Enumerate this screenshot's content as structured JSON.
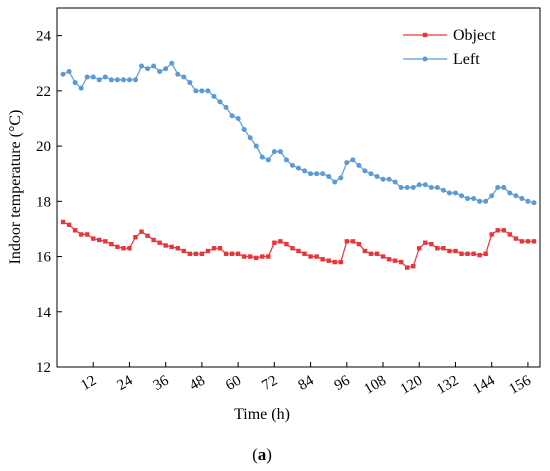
{
  "chart_data": {
    "type": "line",
    "title": "",
    "xlabel": "Time (h)",
    "ylabel": "Indoor temperature (°C)",
    "xlim": [
      0,
      160
    ],
    "ylim": [
      12,
      25
    ],
    "xticks": [
      12,
      24,
      36,
      48,
      60,
      72,
      84,
      96,
      108,
      120,
      132,
      144,
      156
    ],
    "yticks": [
      12,
      14,
      16,
      18,
      20,
      22,
      24
    ],
    "grid": false,
    "legend_position": "top-right",
    "series": [
      {
        "name": "Object",
        "color": "#e8353a",
        "marker": "square",
        "x": [
          2,
          4,
          6,
          8,
          10,
          12,
          14,
          16,
          18,
          20,
          22,
          24,
          26,
          28,
          30,
          32,
          34,
          36,
          38,
          40,
          42,
          44,
          46,
          48,
          50,
          52,
          54,
          56,
          58,
          60,
          62,
          64,
          66,
          68,
          70,
          72,
          74,
          76,
          78,
          80,
          82,
          84,
          86,
          88,
          90,
          92,
          94,
          96,
          98,
          100,
          102,
          104,
          106,
          108,
          110,
          112,
          114,
          116,
          118,
          120,
          122,
          124,
          126,
          128,
          130,
          132,
          134,
          136,
          138,
          140,
          142,
          144,
          146,
          148,
          150,
          152,
          154,
          156,
          158
        ],
        "y": [
          17.25,
          17.15,
          16.95,
          16.8,
          16.8,
          16.65,
          16.6,
          16.55,
          16.45,
          16.35,
          16.3,
          16.3,
          16.7,
          16.9,
          16.75,
          16.6,
          16.5,
          16.4,
          16.35,
          16.3,
          16.2,
          16.1,
          16.1,
          16.1,
          16.2,
          16.3,
          16.3,
          16.1,
          16.1,
          16.1,
          16.0,
          16.0,
          15.95,
          16.0,
          16.0,
          16.5,
          16.55,
          16.45,
          16.3,
          16.2,
          16.1,
          16.0,
          16.0,
          15.9,
          15.85,
          15.8,
          15.8,
          16.55,
          16.55,
          16.45,
          16.2,
          16.1,
          16.1,
          16.0,
          15.9,
          15.85,
          15.8,
          15.6,
          15.65,
          16.3,
          16.5,
          16.45,
          16.3,
          16.3,
          16.2,
          16.2,
          16.1,
          16.1,
          16.1,
          16.05,
          16.1,
          16.8,
          16.95,
          16.95,
          16.8,
          16.65,
          16.55,
          16.55,
          16.55
        ]
      },
      {
        "name": "Left",
        "color": "#5b9bd5",
        "marker": "circle",
        "x": [
          2,
          4,
          6,
          8,
          10,
          12,
          14,
          16,
          18,
          20,
          22,
          24,
          26,
          28,
          30,
          32,
          34,
          36,
          38,
          40,
          42,
          44,
          46,
          48,
          50,
          52,
          54,
          56,
          58,
          60,
          62,
          64,
          66,
          68,
          70,
          72,
          74,
          76,
          78,
          80,
          82,
          84,
          86,
          88,
          90,
          92,
          94,
          96,
          98,
          100,
          102,
          104,
          106,
          108,
          110,
          112,
          114,
          116,
          118,
          120,
          122,
          124,
          126,
          128,
          130,
          132,
          134,
          136,
          138,
          140,
          142,
          144,
          146,
          148,
          150,
          152,
          154,
          156,
          158
        ],
        "y": [
          22.6,
          22.7,
          22.3,
          22.1,
          22.5,
          22.5,
          22.4,
          22.5,
          22.4,
          22.4,
          22.4,
          22.4,
          22.4,
          22.9,
          22.8,
          22.9,
          22.7,
          22.8,
          23.0,
          22.6,
          22.5,
          22.3,
          22.0,
          22.0,
          22.0,
          21.8,
          21.6,
          21.4,
          21.1,
          21.0,
          20.6,
          20.3,
          20.0,
          19.6,
          19.5,
          19.8,
          19.8,
          19.5,
          19.3,
          19.2,
          19.1,
          19.0,
          19.0,
          19.0,
          18.9,
          18.7,
          18.85,
          19.4,
          19.5,
          19.3,
          19.1,
          19.0,
          18.9,
          18.8,
          18.8,
          18.7,
          18.5,
          18.5,
          18.5,
          18.6,
          18.6,
          18.5,
          18.5,
          18.4,
          18.3,
          18.3,
          18.2,
          18.1,
          18.1,
          18.0,
          18.0,
          18.2,
          18.5,
          18.5,
          18.3,
          18.2,
          18.1,
          18.0,
          17.95
        ]
      }
    ]
  },
  "caption": {
    "open": "(",
    "letter": "a",
    "close": ")"
  }
}
